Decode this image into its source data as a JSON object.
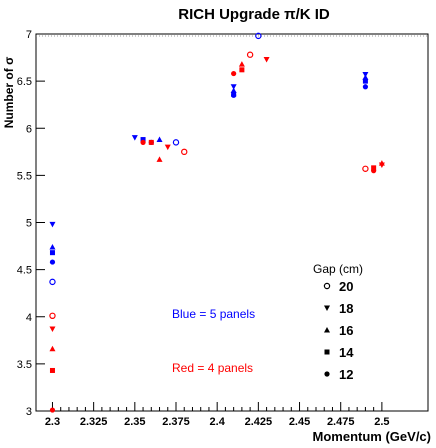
{
  "chart_data": {
    "type": "scatter",
    "title": "RICH Upgrade π/K ID",
    "xlabel": "Momentum (GeV/c)",
    "ylabel": "Number of σ",
    "xlim": [
      2.29,
      2.528
    ],
    "ylim": [
      3.0,
      7.0
    ],
    "x_ticks": [
      2.3,
      2.325,
      2.35,
      2.375,
      2.4,
      2.425,
      2.45,
      2.475,
      2.5
    ],
    "x_tick_labels": [
      "2.3",
      "2.325",
      "2.35",
      "2.375",
      "2.4",
      "2.425",
      "2.45",
      "2.475",
      "2.5"
    ],
    "y_ticks": [
      3.5,
      4.0,
      4.5,
      5.0,
      5.5,
      6.0,
      6.5,
      7.0
    ],
    "y_tick_labels": [
      "3.5",
      "4",
      "4.5",
      "5",
      "5.5",
      "6",
      "6.5",
      "7"
    ],
    "y_tick_labels_rotated": false,
    "grid": false,
    "legend_title": "Gap (cm)",
    "legend_position": "bottom-right",
    "colors": {
      "blue": "#0000ff",
      "red": "#ff0000",
      "black": "#000000"
    },
    "series": [
      {
        "name": "20",
        "marker": "open-circle",
        "group": "blue",
        "points": [
          [
            2.3,
            4.37
          ],
          [
            2.375,
            5.85
          ],
          [
            2.425,
            6.98
          ]
        ]
      },
      {
        "name": "18",
        "marker": "triangle-down",
        "group": "blue",
        "points": [
          [
            2.3,
            4.98
          ],
          [
            2.35,
            5.9
          ],
          [
            2.41,
            6.44
          ],
          [
            2.49,
            6.57
          ]
        ]
      },
      {
        "name": "16",
        "marker": "triangle-up",
        "group": "blue",
        "points": [
          [
            2.3,
            4.74
          ],
          [
            2.365,
            5.88
          ],
          [
            2.41,
            6.4
          ],
          [
            2.49,
            6.54
          ]
        ]
      },
      {
        "name": "14",
        "marker": "square",
        "group": "blue",
        "points": [
          [
            2.3,
            4.68
          ],
          [
            2.355,
            5.88
          ],
          [
            2.41,
            6.36
          ],
          [
            2.49,
            6.5
          ]
        ]
      },
      {
        "name": "12",
        "marker": "filled-circle",
        "group": "blue",
        "points": [
          [
            2.3,
            4.58
          ],
          [
            2.36,
            5.85
          ],
          [
            2.41,
            6.35
          ],
          [
            2.49,
            6.44
          ]
        ]
      },
      {
        "name": "20",
        "marker": "open-circle",
        "group": "red",
        "points": [
          [
            2.3,
            4.01
          ],
          [
            2.38,
            5.75
          ],
          [
            2.42,
            6.78
          ],
          [
            2.49,
            5.57
          ]
        ]
      },
      {
        "name": "18",
        "marker": "triangle-down",
        "group": "red",
        "points": [
          [
            2.3,
            3.87
          ],
          [
            2.37,
            5.8
          ],
          [
            2.43,
            6.73
          ],
          [
            2.5,
            5.61
          ]
        ]
      },
      {
        "name": "16",
        "marker": "triangle-up",
        "group": "red",
        "points": [
          [
            2.3,
            3.66
          ],
          [
            2.365,
            5.67
          ],
          [
            2.415,
            6.68
          ],
          [
            2.5,
            5.63
          ]
        ]
      },
      {
        "name": "14",
        "marker": "square",
        "group": "red",
        "points": [
          [
            2.3,
            3.43
          ],
          [
            2.36,
            5.85
          ],
          [
            2.415,
            6.62
          ],
          [
            2.495,
            5.58
          ]
        ]
      },
      {
        "name": "12",
        "marker": "filled-circle",
        "group": "red",
        "points": [
          [
            2.3,
            3.01
          ],
          [
            2.355,
            5.85
          ],
          [
            2.41,
            6.58
          ],
          [
            2.495,
            5.55
          ]
        ]
      }
    ],
    "annotations": [
      "Blue = 5 panels",
      "Red = 4 panels"
    ]
  }
}
